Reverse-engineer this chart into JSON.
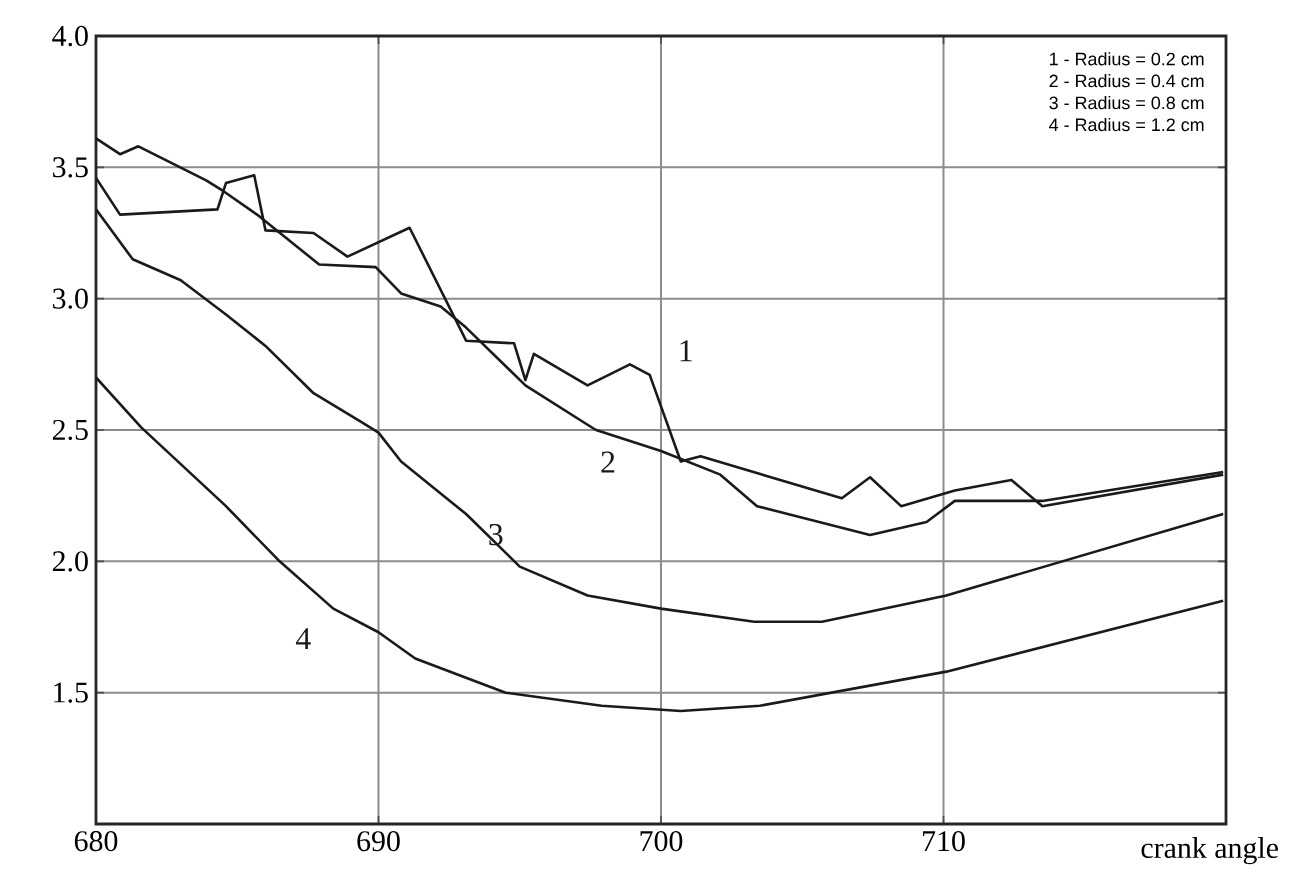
{
  "chart_data": {
    "type": "line",
    "xlabel": "crank angle",
    "xlim": [
      680,
      720
    ],
    "ylim": [
      1,
      4
    ],
    "xticks": [
      680,
      690,
      700,
      710
    ],
    "yticks": [
      1.5,
      {
        "value": 2,
        "label": "2.0"
      },
      2.5,
      {
        "value": 3,
        "label": "3.0"
      },
      3.5,
      {
        "value": 4,
        "label": "4.0"
      }
    ],
    "grid": true,
    "marker": "none",
    "line_style": "solid",
    "annotations": [
      "1 - Radius = 0.2 cm",
      "2 - Radius = 0.4 cm",
      "3 - Radius = 0.8 cm",
      "4 - Radius = 1.2 cm"
    ],
    "series": [
      {
        "name": "1",
        "color": "#1a1a1a",
        "x": [
          680,
          680.85,
          684.3,
          684.6,
          685.6,
          686,
          687.7,
          688.9,
          691.1,
          693.1,
          694.8,
          695.2,
          695.5,
          697.4,
          698.9,
          699.6,
          700.7,
          701.4,
          706.4,
          707.4,
          708.5,
          710.4,
          712.4,
          713.5,
          719.9
        ],
        "values": [
          3.46,
          3.32,
          3.34,
          3.44,
          3.47,
          3.26,
          3.25,
          3.16,
          3.27,
          2.84,
          2.83,
          2.69,
          2.79,
          2.67,
          2.75,
          2.71,
          2.38,
          2.4,
          2.24,
          2.32,
          2.21,
          2.27,
          2.31,
          2.21,
          2.33
        ]
      },
      {
        "name": "2",
        "color": "#1a1a1a",
        "x": [
          680,
          680.85,
          681.5,
          683.9,
          684.5,
          685.7,
          687.9,
          689.9,
          690.8,
          692.2,
          693.1,
          695.2,
          697.4,
          697.7,
          700,
          702.1,
          703.4,
          707.4,
          709.4,
          710.4,
          713.5,
          719.9
        ],
        "values": [
          3.61,
          3.55,
          3.58,
          3.45,
          3.41,
          3.32,
          3.13,
          3.12,
          3.02,
          2.97,
          2.89,
          2.67,
          2.52,
          2.5,
          2.42,
          2.33,
          2.21,
          2.1,
          2.15,
          2.23,
          2.23,
          2.34
        ]
      },
      {
        "name": "3",
        "color": "#1a1a1a",
        "x": [
          680,
          681.3,
          683,
          684.6,
          686,
          687.7,
          689.4,
          690,
          690.8,
          693.1,
          695,
          697.4,
          700,
          703.3,
          705.7,
          710.1,
          719.9
        ],
        "values": [
          3.34,
          3.15,
          3.07,
          2.94,
          2.82,
          2.64,
          2.53,
          2.49,
          2.38,
          2.18,
          1.98,
          1.87,
          1.82,
          1.77,
          1.77,
          1.87,
          2.18
        ]
      },
      {
        "name": "4",
        "color": "#1a1a1a",
        "x": [
          680,
          681.6,
          684.6,
          686.5,
          688.4,
          690,
          691.3,
          694.5,
          697.9,
          700.7,
          703.5,
          710.1,
          719.9
        ],
        "values": [
          2.7,
          2.51,
          2.21,
          2.0,
          1.82,
          1.73,
          1.63,
          1.5,
          1.45,
          1.43,
          1.45,
          1.58,
          1.85
        ]
      }
    ]
  }
}
